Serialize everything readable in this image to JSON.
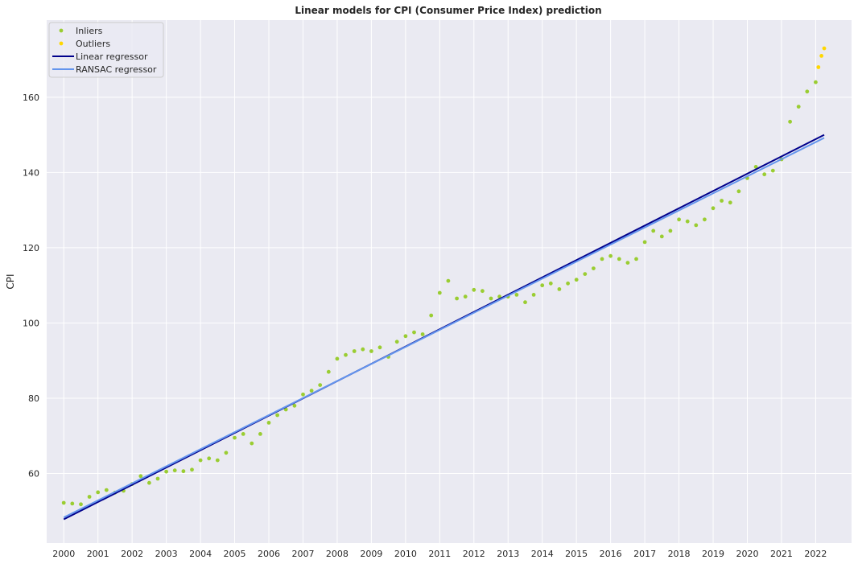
{
  "chart_data": {
    "type": "scatter",
    "title": "Linear models for CPI (Consumer Price Index) prediction",
    "xlabel": "",
    "ylabel": "CPI",
    "grid": true,
    "legend_position": "top-left",
    "xlim": [
      1999.5,
      2023.05
    ],
    "ylim": [
      41.5,
      180.5
    ],
    "x_ticks": [
      2000,
      2001,
      2002,
      2003,
      2004,
      2005,
      2006,
      2007,
      2008,
      2009,
      2010,
      2011,
      2012,
      2013,
      2014,
      2015,
      2016,
      2017,
      2018,
      2019,
      2020,
      2021,
      2022
    ],
    "x_tick_labels": [
      "2000",
      "2001",
      "2002",
      "2003",
      "2004",
      "2005",
      "2006",
      "2007",
      "2008",
      "2009",
      "2010",
      "2011",
      "2012",
      "2013",
      "2014",
      "2015",
      "2016",
      "2017",
      "2018",
      "2019",
      "2020",
      "2021",
      "2022"
    ],
    "y_ticks": [
      60,
      80,
      100,
      120,
      140,
      160
    ],
    "y_tick_labels": [
      "60",
      "80",
      "100",
      "120",
      "140",
      "160"
    ],
    "series": [
      {
        "name": "Inliers",
        "kind": "scatter",
        "color": "#9acd32",
        "points": [
          [
            2000.0,
            52.2
          ],
          [
            2000.25,
            52.0
          ],
          [
            2000.5,
            51.8
          ],
          [
            2000.75,
            53.8
          ],
          [
            2001.0,
            55.0
          ],
          [
            2001.25,
            55.6
          ],
          [
            2001.5,
            54.9
          ],
          [
            2001.75,
            55.4
          ],
          [
            2002.0,
            57.2
          ],
          [
            2002.25,
            59.3
          ],
          [
            2002.5,
            57.5
          ],
          [
            2002.75,
            58.6
          ],
          [
            2003.0,
            60.5
          ],
          [
            2003.25,
            60.8
          ],
          [
            2003.5,
            60.6
          ],
          [
            2003.75,
            61.0
          ],
          [
            2004.0,
            63.5
          ],
          [
            2004.25,
            64.0
          ],
          [
            2004.5,
            63.5
          ],
          [
            2004.75,
            65.5
          ],
          [
            2005.0,
            69.5
          ],
          [
            2005.25,
            70.5
          ],
          [
            2005.5,
            68.0
          ],
          [
            2005.75,
            70.5
          ],
          [
            2006.0,
            73.5
          ],
          [
            2006.25,
            75.5
          ],
          [
            2006.5,
            77.0
          ],
          [
            2006.75,
            78.0
          ],
          [
            2007.0,
            81.0
          ],
          [
            2007.25,
            82.0
          ],
          [
            2007.5,
            83.5
          ],
          [
            2007.75,
            87.0
          ],
          [
            2008.0,
            90.5
          ],
          [
            2008.25,
            91.5
          ],
          [
            2008.5,
            92.5
          ],
          [
            2008.75,
            93.0
          ],
          [
            2009.0,
            92.5
          ],
          [
            2009.25,
            93.5
          ],
          [
            2009.5,
            91.0
          ],
          [
            2009.75,
            95.0
          ],
          [
            2010.0,
            96.5
          ],
          [
            2010.25,
            97.5
          ],
          [
            2010.5,
            97.0
          ],
          [
            2010.75,
            102.0
          ],
          [
            2011.0,
            108.0
          ],
          [
            2011.25,
            111.2
          ],
          [
            2011.5,
            106.5
          ],
          [
            2011.75,
            107.0
          ],
          [
            2012.0,
            108.8
          ],
          [
            2012.25,
            108.5
          ],
          [
            2012.5,
            106.5
          ],
          [
            2012.75,
            107.0
          ],
          [
            2013.0,
            107.0
          ],
          [
            2013.25,
            107.5
          ],
          [
            2013.5,
            105.5
          ],
          [
            2013.75,
            107.5
          ],
          [
            2014.0,
            110.0
          ],
          [
            2014.25,
            110.5
          ],
          [
            2014.5,
            109.0
          ],
          [
            2014.75,
            110.5
          ],
          [
            2015.0,
            111.5
          ],
          [
            2015.25,
            113.0
          ],
          [
            2015.5,
            114.5
          ],
          [
            2015.75,
            117.0
          ],
          [
            2016.0,
            117.8
          ],
          [
            2016.25,
            117.0
          ],
          [
            2016.5,
            116.0
          ],
          [
            2016.75,
            117.0
          ],
          [
            2017.0,
            121.5
          ],
          [
            2017.25,
            124.5
          ],
          [
            2017.5,
            123.0
          ],
          [
            2017.75,
            124.5
          ],
          [
            2018.0,
            127.5
          ],
          [
            2018.25,
            127.0
          ],
          [
            2018.5,
            126.0
          ],
          [
            2018.75,
            127.5
          ],
          [
            2019.0,
            130.5
          ],
          [
            2019.25,
            132.5
          ],
          [
            2019.5,
            132.0
          ],
          [
            2019.75,
            135.0
          ],
          [
            2020.0,
            138.5
          ],
          [
            2020.25,
            141.5
          ],
          [
            2020.5,
            139.5
          ],
          [
            2020.75,
            140.5
          ],
          [
            2021.0,
            143.5
          ],
          [
            2021.25,
            153.5
          ],
          [
            2021.5,
            157.5
          ],
          [
            2021.75,
            161.5
          ],
          [
            2022.0,
            164.0
          ]
        ]
      },
      {
        "name": "Outliers",
        "kind": "scatter",
        "color": "#ffd700",
        "points": [
          [
            2022.08,
            168.0
          ],
          [
            2022.17,
            171.0
          ],
          [
            2022.25,
            173.0
          ]
        ]
      },
      {
        "name": "Linear regressor",
        "kind": "line",
        "color": "#00008b",
        "points": [
          [
            2000.0,
            47.8
          ],
          [
            2022.25,
            150.0
          ]
        ]
      },
      {
        "name": "RANSAC regressor",
        "kind": "line",
        "color": "#6495ed",
        "points": [
          [
            2000.0,
            48.3
          ],
          [
            2022.25,
            149.2
          ]
        ]
      }
    ]
  }
}
